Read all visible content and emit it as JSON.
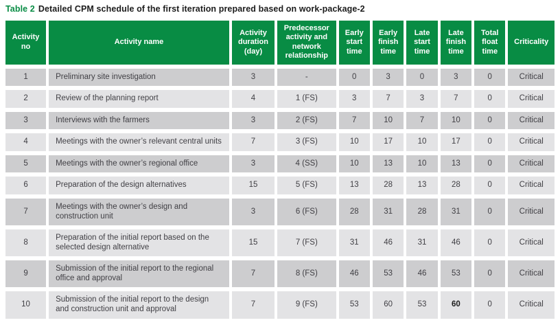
{
  "colors": {
    "header_green": "#088c44",
    "row_dark": "#cdcdcf",
    "row_light": "#e3e3e5",
    "cell_text": "#403f44"
  },
  "caption": {
    "label": "Table 2",
    "text": "Detailed CPM schedule of the first iteration prepared based on work-package-2"
  },
  "table": {
    "columns": [
      {
        "key": "activity-no",
        "label": "Activity no"
      },
      {
        "key": "activity-name",
        "label": "Activity name"
      },
      {
        "key": "duration",
        "label": "Activity duration (day)"
      },
      {
        "key": "predecessor",
        "label": "Predecessor activity and network relationship"
      },
      {
        "key": "early-start",
        "label": "Early start time"
      },
      {
        "key": "early-finish",
        "label": "Early finish time"
      },
      {
        "key": "late-start",
        "label": "Late start time"
      },
      {
        "key": "late-finish",
        "label": "Late finish time"
      },
      {
        "key": "total-float",
        "label": "Total float time"
      },
      {
        "key": "criticality",
        "label": "Criticality"
      }
    ],
    "rows": [
      [
        "1",
        "Preliminary site investigation",
        "3",
        "-",
        "0",
        "3",
        "0",
        "3",
        "0",
        "Critical"
      ],
      [
        "2",
        "Review of the planning report",
        "4",
        "1 (FS)",
        "3",
        "7",
        "3",
        "7",
        "0",
        "Critical"
      ],
      [
        "3",
        "Interviews with the farmers",
        "3",
        "2 (FS)",
        "7",
        "10",
        "7",
        "10",
        "0",
        "Critical"
      ],
      [
        "4",
        "Meetings with the owner’s relevant central units",
        "7",
        "3 (FS)",
        "10",
        "17",
        "10",
        "17",
        "0",
        "Critical"
      ],
      [
        "5",
        "Meetings with the owner’s regional office",
        "3",
        "4 (SS)",
        "10",
        "13",
        "10",
        "13",
        "0",
        "Critical"
      ],
      [
        "6",
        "Preparation of the design alternatives",
        "15",
        "5 (FS)",
        "13",
        "28",
        "13",
        "28",
        "0",
        "Critical"
      ],
      [
        "7",
        "Meetings with the owner’s design and construction unit",
        "3",
        "6 (FS)",
        "28",
        "31",
        "28",
        "31",
        "0",
        "Critical"
      ],
      [
        "8",
        "Preparation of the initial report based on the selected design alternative",
        "15",
        "7 (FS)",
        "31",
        "46",
        "31",
        "46",
        "0",
        "Critical"
      ],
      [
        "9",
        "Submission of the initial report to the regional office and approval",
        "7",
        "8 (FS)",
        "46",
        "53",
        "46",
        "53",
        "0",
        "Critical"
      ],
      [
        "10",
        "Submission of the initial report to the design and construction unit and approval",
        "7",
        "9 (FS)",
        "53",
        "60",
        "53",
        "60",
        "0",
        "Critical"
      ]
    ],
    "bold_cells": [
      [
        9,
        7
      ]
    ]
  }
}
